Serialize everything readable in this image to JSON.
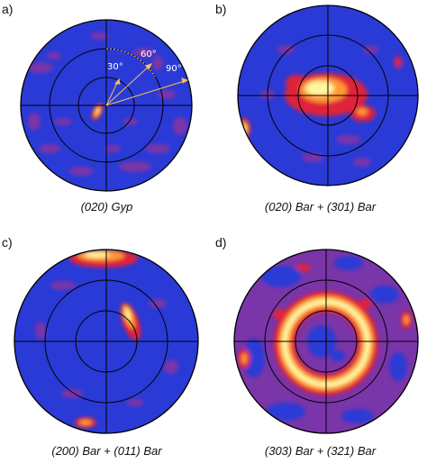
{
  "panels": [
    {
      "tag": "a)",
      "caption": "(020) Gyp",
      "angle_labels": [
        "30°",
        "60°",
        "90°"
      ]
    },
    {
      "tag": "b)",
      "caption": "(020) Bar + (301) Bar"
    },
    {
      "tag": "c)",
      "caption": "(200) Bar + (011) Bar"
    },
    {
      "tag": "d)",
      "caption": "(303) Bar + (321) Bar"
    }
  ],
  "colors": {
    "background": "#2a3ad6",
    "low": "#7a35a8",
    "medium": "#e0203a",
    "high": "#ff9a30",
    "peak": "#fff7a0",
    "grid": "#000000",
    "annotation": "#f2c060"
  }
}
